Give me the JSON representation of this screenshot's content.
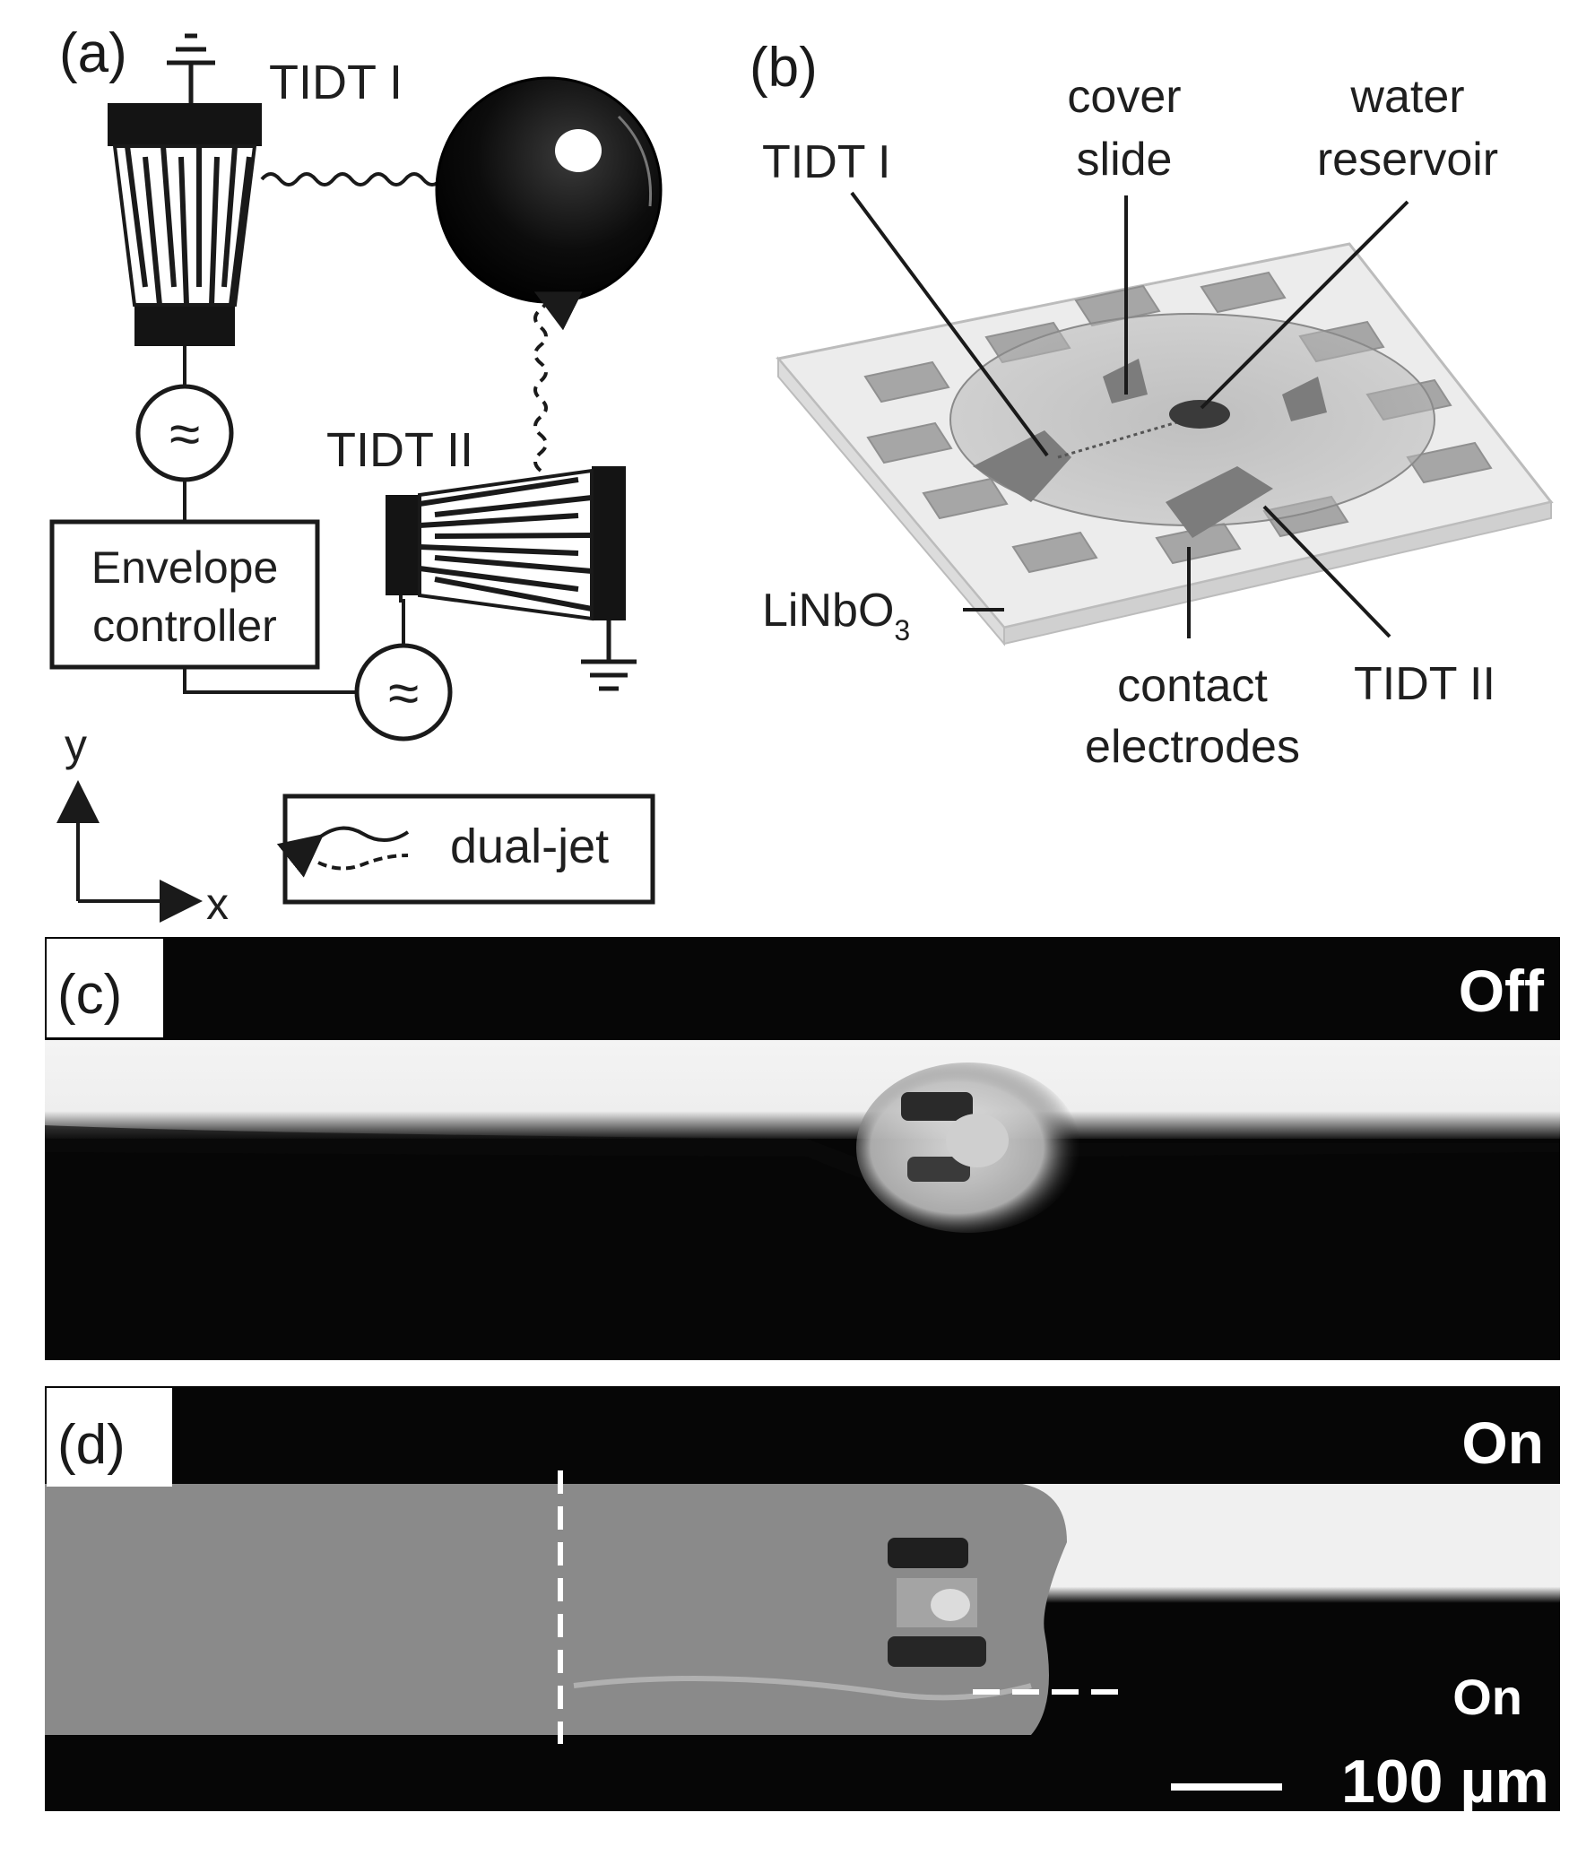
{
  "panels": {
    "a": {
      "letter": "(a)",
      "tidt1_label": "TIDT I",
      "tidt2_label": "TIDT II",
      "envelope_line1": "Envelope",
      "envelope_line2": "controller",
      "source_symbol": "≈",
      "legend_label": "dual-jet",
      "axis_x": "x",
      "axis_y": "y"
    },
    "b": {
      "letter": "(b)",
      "tidt1_label": "TIDT I",
      "cover_line1": "cover",
      "cover_line2": "slide",
      "water_line1": "water",
      "water_line2": "reservoir",
      "substrate_main": "LiNbO",
      "substrate_sub": "3",
      "contact_line1": "contact",
      "contact_line2": "electrodes",
      "tidt2_label": "TIDT II"
    },
    "c": {
      "letter": "(c)",
      "state": "Off"
    },
    "d": {
      "letter": "(d)",
      "state_top": "On",
      "state_bottom": "On",
      "scale_bar": "100 µm"
    }
  },
  "colors": {
    "ink": "#1a1a1a",
    "photo_dark": "#060606",
    "photo_bright": "#f2f2f2",
    "liquid_gray": "#8a8a8a"
  }
}
